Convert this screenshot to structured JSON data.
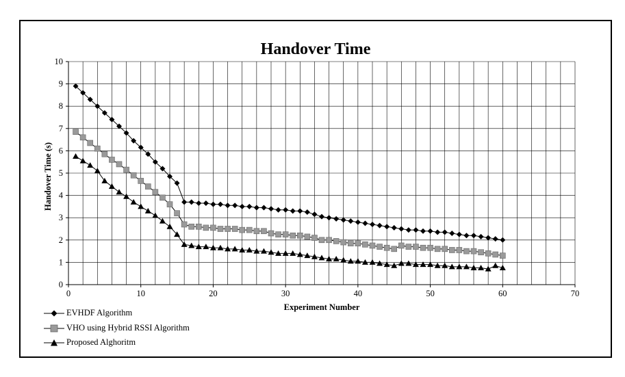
{
  "chart_data": {
    "type": "line",
    "title": "Handover Time",
    "xlabel": "Experiment Number",
    "ylabel": "Handover Time (s)",
    "xlim": [
      0,
      70
    ],
    "ylim": [
      0,
      10
    ],
    "xticks": [
      0,
      10,
      20,
      30,
      40,
      50,
      60,
      70
    ],
    "yticks": [
      0,
      1,
      2,
      3,
      4,
      5,
      6,
      7,
      8,
      9,
      10
    ],
    "grid": true,
    "legend_position": "bottom-left",
    "x": [
      1,
      2,
      3,
      4,
      5,
      6,
      7,
      8,
      9,
      10,
      11,
      12,
      13,
      14,
      15,
      16,
      17,
      18,
      19,
      20,
      21,
      22,
      23,
      24,
      25,
      26,
      27,
      28,
      29,
      30,
      31,
      32,
      33,
      34,
      35,
      36,
      37,
      38,
      39,
      40,
      41,
      42,
      43,
      44,
      45,
      46,
      47,
      48,
      49,
      50,
      51,
      52,
      53,
      54,
      55,
      56,
      57,
      58,
      59,
      60
    ],
    "series": [
      {
        "name": "EVHDF Algorithm",
        "marker": "diamond",
        "color": "#000000",
        "values": [
          8.9,
          8.6,
          8.3,
          8.0,
          7.7,
          7.4,
          7.1,
          6.8,
          6.45,
          6.15,
          5.85,
          5.5,
          5.2,
          4.85,
          4.55,
          3.7,
          3.7,
          3.65,
          3.65,
          3.6,
          3.6,
          3.55,
          3.55,
          3.5,
          3.5,
          3.45,
          3.45,
          3.4,
          3.35,
          3.35,
          3.3,
          3.3,
          3.25,
          3.15,
          3.05,
          3.0,
          2.95,
          2.9,
          2.85,
          2.8,
          2.75,
          2.7,
          2.65,
          2.6,
          2.55,
          2.5,
          2.45,
          2.45,
          2.4,
          2.4,
          2.35,
          2.35,
          2.3,
          2.25,
          2.2,
          2.2,
          2.15,
          2.1,
          2.05,
          2.0
        ]
      },
      {
        "name": "VHO using Hybrid RSSI Algorithm",
        "marker": "square",
        "color": "#9a9a9a",
        "values": [
          6.85,
          6.6,
          6.35,
          6.1,
          5.85,
          5.6,
          5.4,
          5.15,
          4.9,
          4.65,
          4.4,
          4.15,
          3.9,
          3.6,
          3.2,
          2.7,
          2.6,
          2.6,
          2.55,
          2.55,
          2.5,
          2.5,
          2.5,
          2.45,
          2.45,
          2.4,
          2.4,
          2.3,
          2.25,
          2.25,
          2.2,
          2.2,
          2.15,
          2.1,
          2.0,
          2.0,
          1.95,
          1.9,
          1.85,
          1.85,
          1.8,
          1.75,
          1.7,
          1.65,
          1.6,
          1.75,
          1.7,
          1.7,
          1.65,
          1.65,
          1.6,
          1.6,
          1.55,
          1.55,
          1.5,
          1.5,
          1.45,
          1.4,
          1.35,
          1.3
        ]
      },
      {
        "name": "Proposed Alghoritm",
        "marker": "triangle",
        "color": "#000000",
        "values": [
          5.75,
          5.55,
          5.35,
          5.1,
          4.65,
          4.4,
          4.15,
          3.95,
          3.7,
          3.5,
          3.3,
          3.1,
          2.85,
          2.6,
          2.25,
          1.8,
          1.75,
          1.7,
          1.7,
          1.65,
          1.65,
          1.6,
          1.6,
          1.55,
          1.55,
          1.5,
          1.5,
          1.45,
          1.4,
          1.4,
          1.4,
          1.35,
          1.3,
          1.25,
          1.2,
          1.15,
          1.15,
          1.1,
          1.05,
          1.05,
          1.0,
          1.0,
          0.95,
          0.9,
          0.85,
          0.95,
          0.95,
          0.9,
          0.9,
          0.9,
          0.85,
          0.85,
          0.8,
          0.8,
          0.8,
          0.75,
          0.75,
          0.7,
          0.85,
          0.75
        ]
      }
    ]
  }
}
